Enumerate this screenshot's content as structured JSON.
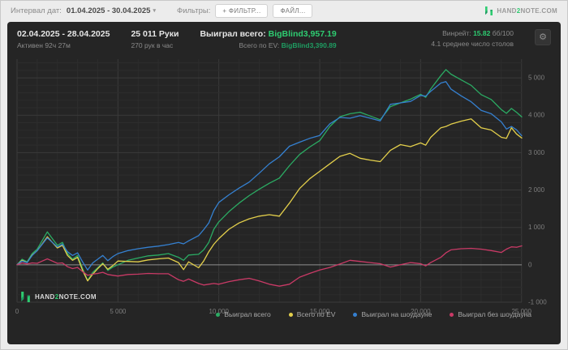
{
  "toolbar": {
    "interval_label": "Интервал дат:",
    "date_range": "01.04.2025 - 30.04.2025",
    "caret": "▾",
    "filters_label": "Фильтры:",
    "filter_button": "+ ФИЛЬТР...",
    "file_button": "ФАЙЛ...",
    "brand_parts": {
      "p1": "HAND",
      "p2": "2",
      "p3": "NOTE.COM"
    }
  },
  "header": {
    "date_range": "02.04.2025 - 28.04.2025",
    "active_time": "Активен 92ч 27м",
    "hands_total": "25 011 Руки",
    "hands_per_hour": "270 рук в час",
    "won_label": "Выиграл всего:",
    "won_value": "BigBlind3,957.19",
    "ev_label": "Всего по EV:",
    "ev_value": "BigBlind3,390.89",
    "winrate_label": "Винрейт:",
    "winrate_value": "15.82",
    "winrate_units": "бб/100",
    "avg_tables": "4.1 среднее число столов",
    "gear_icon": "⚙"
  },
  "watermark": {
    "p1": "HAND",
    "p2": "2",
    "p3": "NOTE.COM"
  },
  "colors": {
    "accent_green": "#2ecc71",
    "panel_bg": "#252525",
    "grid_minor": "#2d2d2d",
    "grid_major": "#3a3a3a",
    "zero_line": "#8f8f8f",
    "axis_text": "#7d7d7d"
  },
  "chart_data": {
    "type": "line",
    "xlabel": "hands",
    "ylabel": "BigBlinds won",
    "x_range": [
      0,
      25011
    ],
    "y_range": [
      -1000,
      5500
    ],
    "grid": {
      "x_minor_step": 1000,
      "x_major_step": 5000,
      "y_minor_step": 200,
      "y_major_step": 1000
    },
    "x_ticks": [
      {
        "v": 0,
        "label": "0"
      },
      {
        "v": 5000,
        "label": "5 000"
      },
      {
        "v": 10000,
        "label": "10 000"
      },
      {
        "v": 15000,
        "label": "15 000"
      },
      {
        "v": 20000,
        "label": "20 000"
      },
      {
        "v": 25000,
        "label": "25 000"
      }
    ],
    "y_ticks": [
      {
        "v": 5000,
        "label": "5 000"
      },
      {
        "v": 4000,
        "label": "4 000"
      },
      {
        "v": 3000,
        "label": "3 000"
      },
      {
        "v": 2000,
        "label": "2 000"
      },
      {
        "v": 1000,
        "label": "1 000"
      },
      {
        "v": 0,
        "label": "0"
      },
      {
        "v": -1000,
        "label": "-1 000"
      }
    ],
    "x": [
      0,
      250,
      500,
      750,
      1000,
      1250,
      1500,
      1750,
      2000,
      2250,
      2500,
      2750,
      3000,
      3250,
      3500,
      3750,
      4000,
      4250,
      4500,
      4750,
      5000,
      5500,
      6000,
      6500,
      7000,
      7500,
      8000,
      8250,
      8500,
      9000,
      9250,
      9500,
      9750,
      10000,
      10500,
      11000,
      11500,
      12000,
      12500,
      13000,
      13500,
      14000,
      14500,
      15000,
      15500,
      16000,
      16500,
      17000,
      17500,
      18000,
      18500,
      19000,
      19500,
      20000,
      20250,
      20500,
      21000,
      21250,
      21500,
      22000,
      22500,
      23000,
      23500,
      24000,
      24250,
      24500,
      24750,
      25011
    ],
    "series": [
      {
        "name": "Выиграл всего",
        "color": "#2bab63",
        "values": [
          0,
          150,
          80,
          300,
          420,
          650,
          880,
          700,
          520,
          600,
          300,
          150,
          250,
          -100,
          -420,
          -200,
          -80,
          50,
          -150,
          -60,
          0,
          120,
          180,
          240,
          260,
          300,
          200,
          120,
          260,
          280,
          400,
          600,
          950,
          1150,
          1420,
          1650,
          1850,
          2020,
          2180,
          2320,
          2650,
          2950,
          3150,
          3320,
          3700,
          3960,
          4040,
          4080,
          3980,
          3880,
          4230,
          4330,
          4430,
          4560,
          4480,
          4700,
          5060,
          5220,
          5100,
          4950,
          4800,
          4550,
          4420,
          4150,
          4050,
          4180,
          4080,
          3957
        ]
      },
      {
        "name": "Всего по EV",
        "color": "#e3cf4b",
        "values": [
          0,
          120,
          60,
          260,
          380,
          560,
          750,
          600,
          450,
          520,
          250,
          120,
          200,
          -150,
          -430,
          -250,
          -100,
          30,
          -120,
          -20,
          100,
          90,
          80,
          130,
          160,
          180,
          60,
          -130,
          80,
          -80,
          100,
          350,
          550,
          700,
          950,
          1120,
          1230,
          1300,
          1340,
          1300,
          1650,
          2040,
          2300,
          2500,
          2700,
          2900,
          2980,
          2850,
          2800,
          2760,
          3060,
          3215,
          3160,
          3260,
          3200,
          3410,
          3665,
          3700,
          3760,
          3840,
          3900,
          3665,
          3605,
          3410,
          3380,
          3665,
          3500,
          3391
        ]
      },
      {
        "name": "Выиграл на шоудауне",
        "color": "#3580d0",
        "values": [
          0,
          100,
          60,
          250,
          380,
          550,
          720,
          600,
          480,
          550,
          350,
          250,
          320,
          80,
          -140,
          50,
          150,
          250,
          110,
          220,
          300,
          380,
          430,
          470,
          500,
          540,
          600,
          560,
          640,
          780,
          940,
          1120,
          1450,
          1670,
          1870,
          2050,
          2210,
          2450,
          2700,
          2890,
          3170,
          3280,
          3380,
          3460,
          3770,
          3940,
          3920,
          3990,
          3920,
          3850,
          4290,
          4330,
          4370,
          4530,
          4510,
          4640,
          4860,
          4900,
          4700,
          4520,
          4360,
          4130,
          4040,
          3820,
          3630,
          3700,
          3610,
          3452
        ]
      },
      {
        "name": "Выиграл без шоудауна",
        "color": "#c93a66",
        "values": [
          0,
          50,
          20,
          50,
          40,
          100,
          160,
          100,
          40,
          50,
          -50,
          -100,
          -70,
          -180,
          -280,
          -250,
          -230,
          -200,
          -260,
          -280,
          -300,
          -260,
          -250,
          -230,
          -240,
          -240,
          -400,
          -440,
          -380,
          -500,
          -540,
          -520,
          -500,
          -520,
          -450,
          -400,
          -360,
          -430,
          -520,
          -570,
          -520,
          -330,
          -230,
          -140,
          -70,
          20,
          120,
          90,
          60,
          30,
          -60,
          0,
          60,
          30,
          -30,
          60,
          200,
          320,
          400,
          430,
          440,
          420,
          380,
          330,
          420,
          480,
          470,
          505
        ]
      }
    ]
  }
}
